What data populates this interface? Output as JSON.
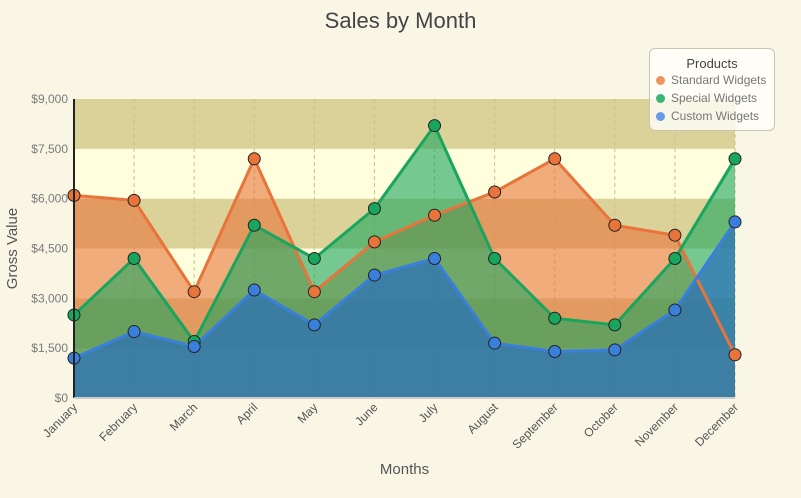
{
  "chart_data": {
    "type": "area",
    "title": "Sales by Month",
    "xlabel": "Months",
    "ylabel": "Gross Value",
    "categories": [
      "January",
      "February",
      "March",
      "April",
      "May",
      "June",
      "July",
      "August",
      "September",
      "October",
      "November",
      "December"
    ],
    "ylim": [
      0,
      9000
    ],
    "yticks": [
      "$0",
      "$1,500",
      "$3,000",
      "$4,500",
      "$6,000",
      "$7,500",
      "$9,000"
    ],
    "grid": true,
    "legend_title": "Products",
    "legend_position": "top-right",
    "series": [
      {
        "name": "Standard Widgets",
        "color": "#e8743b",
        "values": [
          6100,
          5950,
          3200,
          7200,
          3200,
          4700,
          5500,
          6200,
          7200,
          5200,
          4900,
          1300
        ]
      },
      {
        "name": "Special Widgets",
        "color": "#19a55d",
        "values": [
          2500,
          4200,
          1700,
          5200,
          4200,
          5700,
          8200,
          4200,
          2400,
          2200,
          4200,
          7200
        ]
      },
      {
        "name": "Custom Widgets",
        "color": "#3a7fdc",
        "values": [
          1200,
          2000,
          1550,
          3250,
          2200,
          3700,
          4200,
          1650,
          1400,
          1450,
          2650,
          5300
        ]
      }
    ]
  }
}
